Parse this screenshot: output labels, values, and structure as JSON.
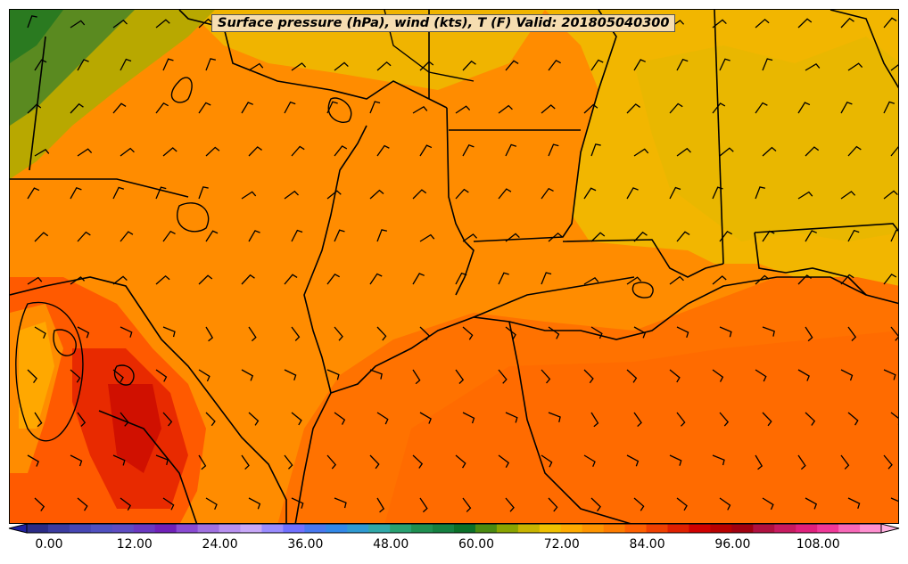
{
  "title": "Surface pressure (hPa), wind (kts), T (F) Valid: 201805040300",
  "colorbar": {
    "ticks": [
      "0.00",
      "12.00",
      "24.00",
      "36.00",
      "48.00",
      "60.00",
      "72.00",
      "84.00",
      "96.00",
      "108.00"
    ],
    "colors": [
      "#2b2b86",
      "#3b3ba0",
      "#4646b4",
      "#5050c0",
      "#5e4cc2",
      "#6a38c0",
      "#7020b8",
      "#8a4ad2",
      "#a070e0",
      "#b890f0",
      "#c8a8f8",
      "#9a8cff",
      "#7070ff",
      "#4878f0",
      "#3288e8",
      "#2f9ad2",
      "#30a8a8",
      "#28a070",
      "#1e8f50",
      "#148040",
      "#0a7028",
      "#4a8a10",
      "#8aa400",
      "#c8b400",
      "#f0c000",
      "#ffaa00",
      "#ff9400",
      "#ff7c00",
      "#ff6000",
      "#f04000",
      "#e02000",
      "#d00000",
      "#b80000",
      "#a00010",
      "#b01040",
      "#c81a60",
      "#e0207c",
      "#f03898",
      "#f868b8",
      "#ff90d0"
    ]
  }
}
